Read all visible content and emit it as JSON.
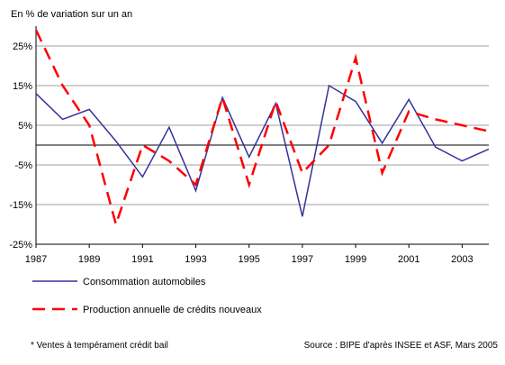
{
  "chart_data": {
    "type": "line",
    "unit_label": "En % de variation sur un an",
    "x": [
      1987,
      1988,
      1989,
      1990,
      1991,
      1992,
      1993,
      1994,
      1995,
      1996,
      1997,
      1998,
      1999,
      2000,
      2001,
      2002,
      2003,
      2004
    ],
    "x_tick_labels": [
      "1987",
      "1989",
      "1991",
      "1993",
      "1995",
      "1997",
      "1999",
      "2001",
      "2003"
    ],
    "y_tick_labels": [
      "25%",
      "15%",
      "5%",
      "-5%",
      "-15%",
      "-25%"
    ],
    "ylim": [
      -25,
      30
    ],
    "grid": true,
    "legend_position": "bottom-left",
    "series": [
      {
        "name": "Consommation automobiles",
        "color": "#333399",
        "dash": "solid",
        "values": [
          13,
          6.5,
          9,
          1,
          -8,
          4.5,
          -11.5,
          12,
          -3,
          10.5,
          -18,
          15,
          11,
          0.5,
          11.5,
          -0.5,
          -4,
          -1
        ]
      },
      {
        "name": "Production annuelle de crédits nouveaux",
        "color": "#ff0000",
        "dash": "dashed",
        "values": [
          29,
          15,
          5,
          -20,
          0,
          -4,
          -10,
          12,
          -10,
          11,
          -7,
          0,
          22,
          -7,
          8.5,
          6.5,
          5,
          3.5
        ]
      }
    ],
    "footnote": "* Ventes à tempérament crédit bail",
    "source": "Source : BIPE d'après INSEE et ASF, Mars 2005"
  }
}
